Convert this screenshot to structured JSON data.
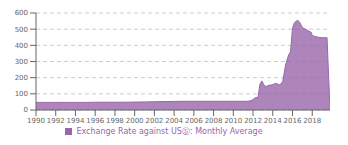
{
  "chart_data": {
    "type": "area",
    "x": [
      1990,
      1991,
      1992,
      1993,
      1994,
      1995,
      1996,
      1997,
      1998,
      1999,
      2000,
      2001,
      2002,
      2003,
      2004,
      2005,
      2006,
      2007,
      2008,
      2009,
      2010,
      2011,
      2011.5,
      2011.8,
      2012.0,
      2012.2,
      2012.5,
      2012.7,
      2012.9,
      2013.1,
      2013.3,
      2013.5,
      2013.7,
      2013.9,
      2014.1,
      2014.3,
      2014.5,
      2014.7,
      2015.0,
      2015.3,
      2015.6,
      2015.8,
      2016.0,
      2016.2,
      2016.5,
      2016.7,
      2017.0,
      2017.3,
      2017.6,
      2017.9,
      2018.0,
      2018.3,
      2018.6,
      2018.9,
      2019.0,
      2019.5,
      2019.8
    ],
    "series": [
      {
        "name": "Exchange Rate against USⓈ: Monthly Average",
        "color": "#9966aa",
        "values": [
          47,
          47,
          47,
          47,
          47,
          47,
          48,
          48,
          48,
          48,
          49,
          50,
          51,
          52,
          53,
          54,
          54,
          54,
          54,
          54,
          54,
          54,
          54,
          58,
          65,
          75,
          78,
          160,
          180,
          155,
          145,
          150,
          155,
          155,
          160,
          165,
          160,
          155,
          175,
          280,
          340,
          360,
          505,
          540,
          555,
          545,
          510,
          500,
          490,
          480,
          460,
          455,
          450,
          448,
          447,
          447,
          0
        ]
      }
    ],
    "xlim": [
      1990,
      2019.8
    ],
    "xticks": [
      1990,
      1992,
      1994,
      1996,
      1998,
      2000,
      2002,
      2004,
      2006,
      2008,
      2010,
      2012,
      2014,
      2016,
      2018
    ],
    "ylim": [
      0,
      600
    ],
    "yticks": [
      0,
      100,
      200,
      300,
      400,
      500,
      600
    ],
    "grid": true,
    "legend": "bottom"
  }
}
